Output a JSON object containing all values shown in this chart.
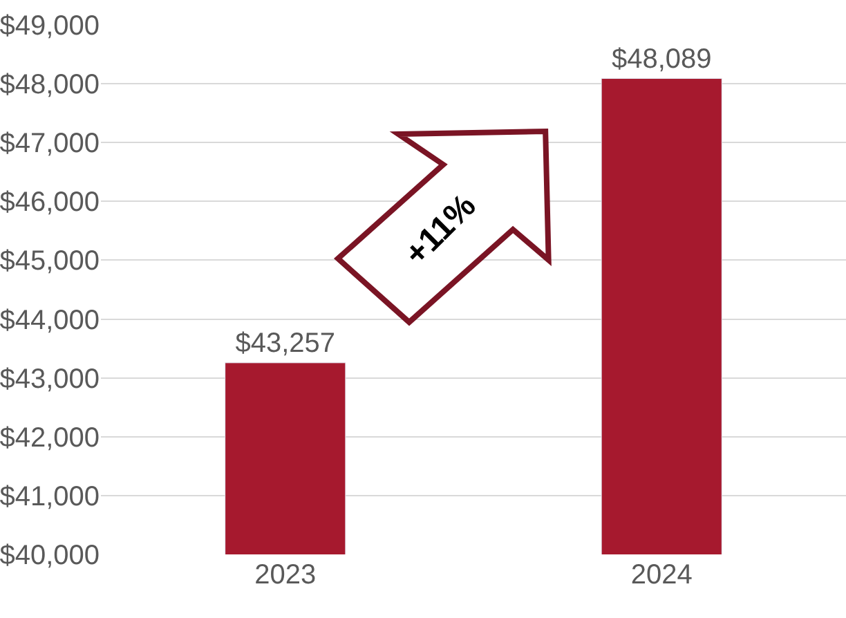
{
  "chart_data": {
    "type": "bar",
    "categories": [
      "2023",
      "2024"
    ],
    "values": [
      43257,
      48089
    ],
    "color": "#a6192e",
    "value_labels": [
      "$43,257",
      "$48,089"
    ],
    "ylim": [
      40000,
      49000
    ],
    "yticks": [
      {
        "value": 40000,
        "label": "$40,000"
      },
      {
        "value": 41000,
        "label": "$41,000"
      },
      {
        "value": 42000,
        "label": "$42,000"
      },
      {
        "value": 43000,
        "label": "$43,000"
      },
      {
        "value": 44000,
        "label": "$44,000"
      },
      {
        "value": 45000,
        "label": "$45,000"
      },
      {
        "value": 46000,
        "label": "$46,000"
      },
      {
        "value": 47000,
        "label": "$47,000"
      },
      {
        "value": 48000,
        "label": "$48,000"
      },
      {
        "value": 49000,
        "label": "$49,000"
      }
    ],
    "grid": "y",
    "annotations": [
      "+11%"
    ]
  }
}
